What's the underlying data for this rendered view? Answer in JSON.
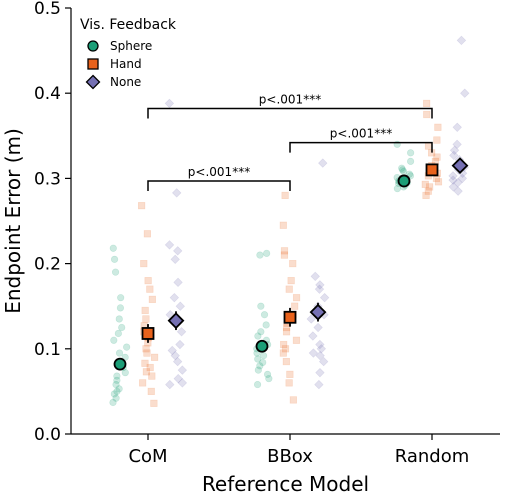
{
  "chart_data": {
    "type": "scatter",
    "xlabel": "Reference Model",
    "ylabel": "Endpoint Error (m)",
    "categories": [
      "CoM",
      "BBox",
      "Random"
    ],
    "ylim": [
      0.0,
      0.5
    ],
    "yticks": [
      "0.0",
      "0.1",
      "0.2",
      "0.3",
      "0.4",
      "0.5"
    ],
    "grid": false,
    "legend": {
      "title": "Vis. Feedback",
      "placement": "top-left",
      "entries": [
        "Sphere",
        "Hand",
        "None"
      ]
    },
    "series": [
      {
        "name": "Sphere",
        "color": "#1b9e77",
        "marker": "circle",
        "means": [
          0.082,
          0.103,
          0.297
        ],
        "errors": [
          0.007,
          0.007,
          0.004
        ],
        "points": [
          [
            0.037,
            0.042,
            0.047,
            0.05,
            0.053,
            0.058,
            0.063,
            0.068,
            0.072,
            0.078,
            0.085,
            0.09,
            0.095,
            0.102,
            0.11,
            0.118,
            0.125,
            0.135,
            0.148,
            0.16,
            0.19,
            0.205,
            0.218
          ],
          [
            0.058,
            0.065,
            0.07,
            0.075,
            0.08,
            0.084,
            0.088,
            0.092,
            0.095,
            0.1,
            0.105,
            0.11,
            0.115,
            0.12,
            0.128,
            0.14,
            0.15,
            0.21,
            0.212
          ],
          [
            0.288,
            0.29,
            0.292,
            0.294,
            0.295,
            0.296,
            0.297,
            0.298,
            0.3,
            0.301,
            0.303,
            0.305,
            0.308,
            0.31,
            0.312,
            0.32,
            0.33,
            0.34
          ]
        ]
      },
      {
        "name": "Hand",
        "color": "#e8621c",
        "marker": "square",
        "means": [
          0.118,
          0.137,
          0.31
        ],
        "errors": [
          0.011,
          0.011,
          0.007
        ],
        "points": [
          [
            0.036,
            0.05,
            0.06,
            0.068,
            0.073,
            0.078,
            0.083,
            0.09,
            0.095,
            0.1,
            0.107,
            0.113,
            0.12,
            0.127,
            0.135,
            0.145,
            0.158,
            0.17,
            0.18,
            0.2,
            0.235,
            0.268
          ],
          [
            0.04,
            0.06,
            0.07,
            0.085,
            0.095,
            0.1,
            0.105,
            0.11,
            0.12,
            0.125,
            0.13,
            0.14,
            0.15,
            0.16,
            0.17,
            0.18,
            0.2,
            0.21,
            0.215,
            0.245,
            0.28
          ],
          [
            0.28,
            0.285,
            0.29,
            0.293,
            0.296,
            0.3,
            0.303,
            0.306,
            0.31,
            0.315,
            0.32,
            0.325,
            0.33,
            0.338,
            0.345,
            0.36,
            0.375,
            0.388
          ]
        ]
      },
      {
        "name": "None",
        "color": "#7570b3",
        "marker": "diamond",
        "means": [
          0.133,
          0.143,
          0.315
        ],
        "errors": [
          0.011,
          0.011,
          0.007
        ],
        "points": [
          [
            0.058,
            0.06,
            0.065,
            0.075,
            0.085,
            0.092,
            0.098,
            0.105,
            0.12,
            0.13,
            0.14,
            0.15,
            0.16,
            0.178,
            0.205,
            0.215,
            0.222,
            0.283,
            0.388
          ],
          [
            0.058,
            0.072,
            0.085,
            0.092,
            0.095,
            0.1,
            0.105,
            0.115,
            0.125,
            0.135,
            0.14,
            0.15,
            0.16,
            0.17,
            0.175,
            0.185,
            0.318
          ],
          [
            0.285,
            0.29,
            0.295,
            0.298,
            0.3,
            0.303,
            0.306,
            0.31,
            0.313,
            0.318,
            0.322,
            0.327,
            0.333,
            0.34,
            0.36,
            0.4,
            0.462
          ]
        ]
      }
    ],
    "annotations": [
      {
        "label": "p<.001***",
        "from": "CoM",
        "to": "Random",
        "y": 0.382
      },
      {
        "label": "p<.001***",
        "from": "BBox",
        "to": "Random",
        "y": 0.342
      },
      {
        "label": "p<.001***",
        "from": "CoM",
        "to": "BBox",
        "y": 0.297
      }
    ]
  }
}
